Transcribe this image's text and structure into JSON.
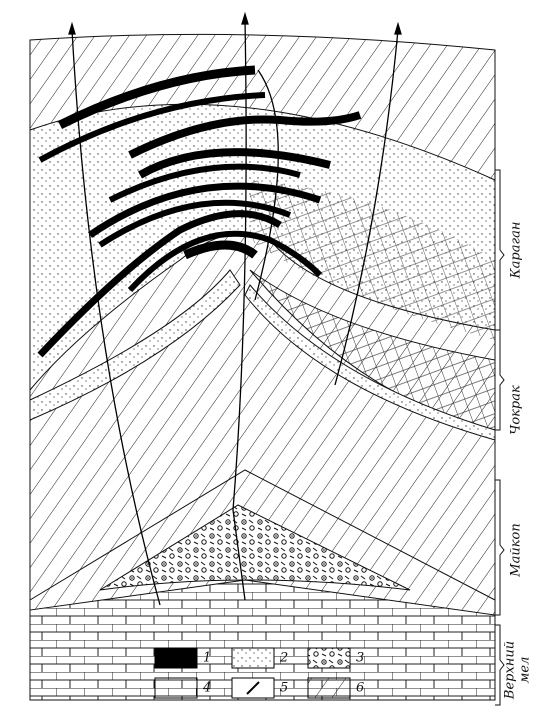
{
  "stratigraphy": [
    {
      "label": "Караган"
    },
    {
      "label": "Чокрак"
    },
    {
      "label": "Майкоп"
    },
    {
      "lines": [
        "Верхний",
        "мел"
      ]
    }
  ],
  "legend": [
    {
      "label": "1"
    },
    {
      "label": "2"
    },
    {
      "label": "3"
    },
    {
      "label": "4"
    },
    {
      "label": "5"
    },
    {
      "label": "6"
    }
  ]
}
